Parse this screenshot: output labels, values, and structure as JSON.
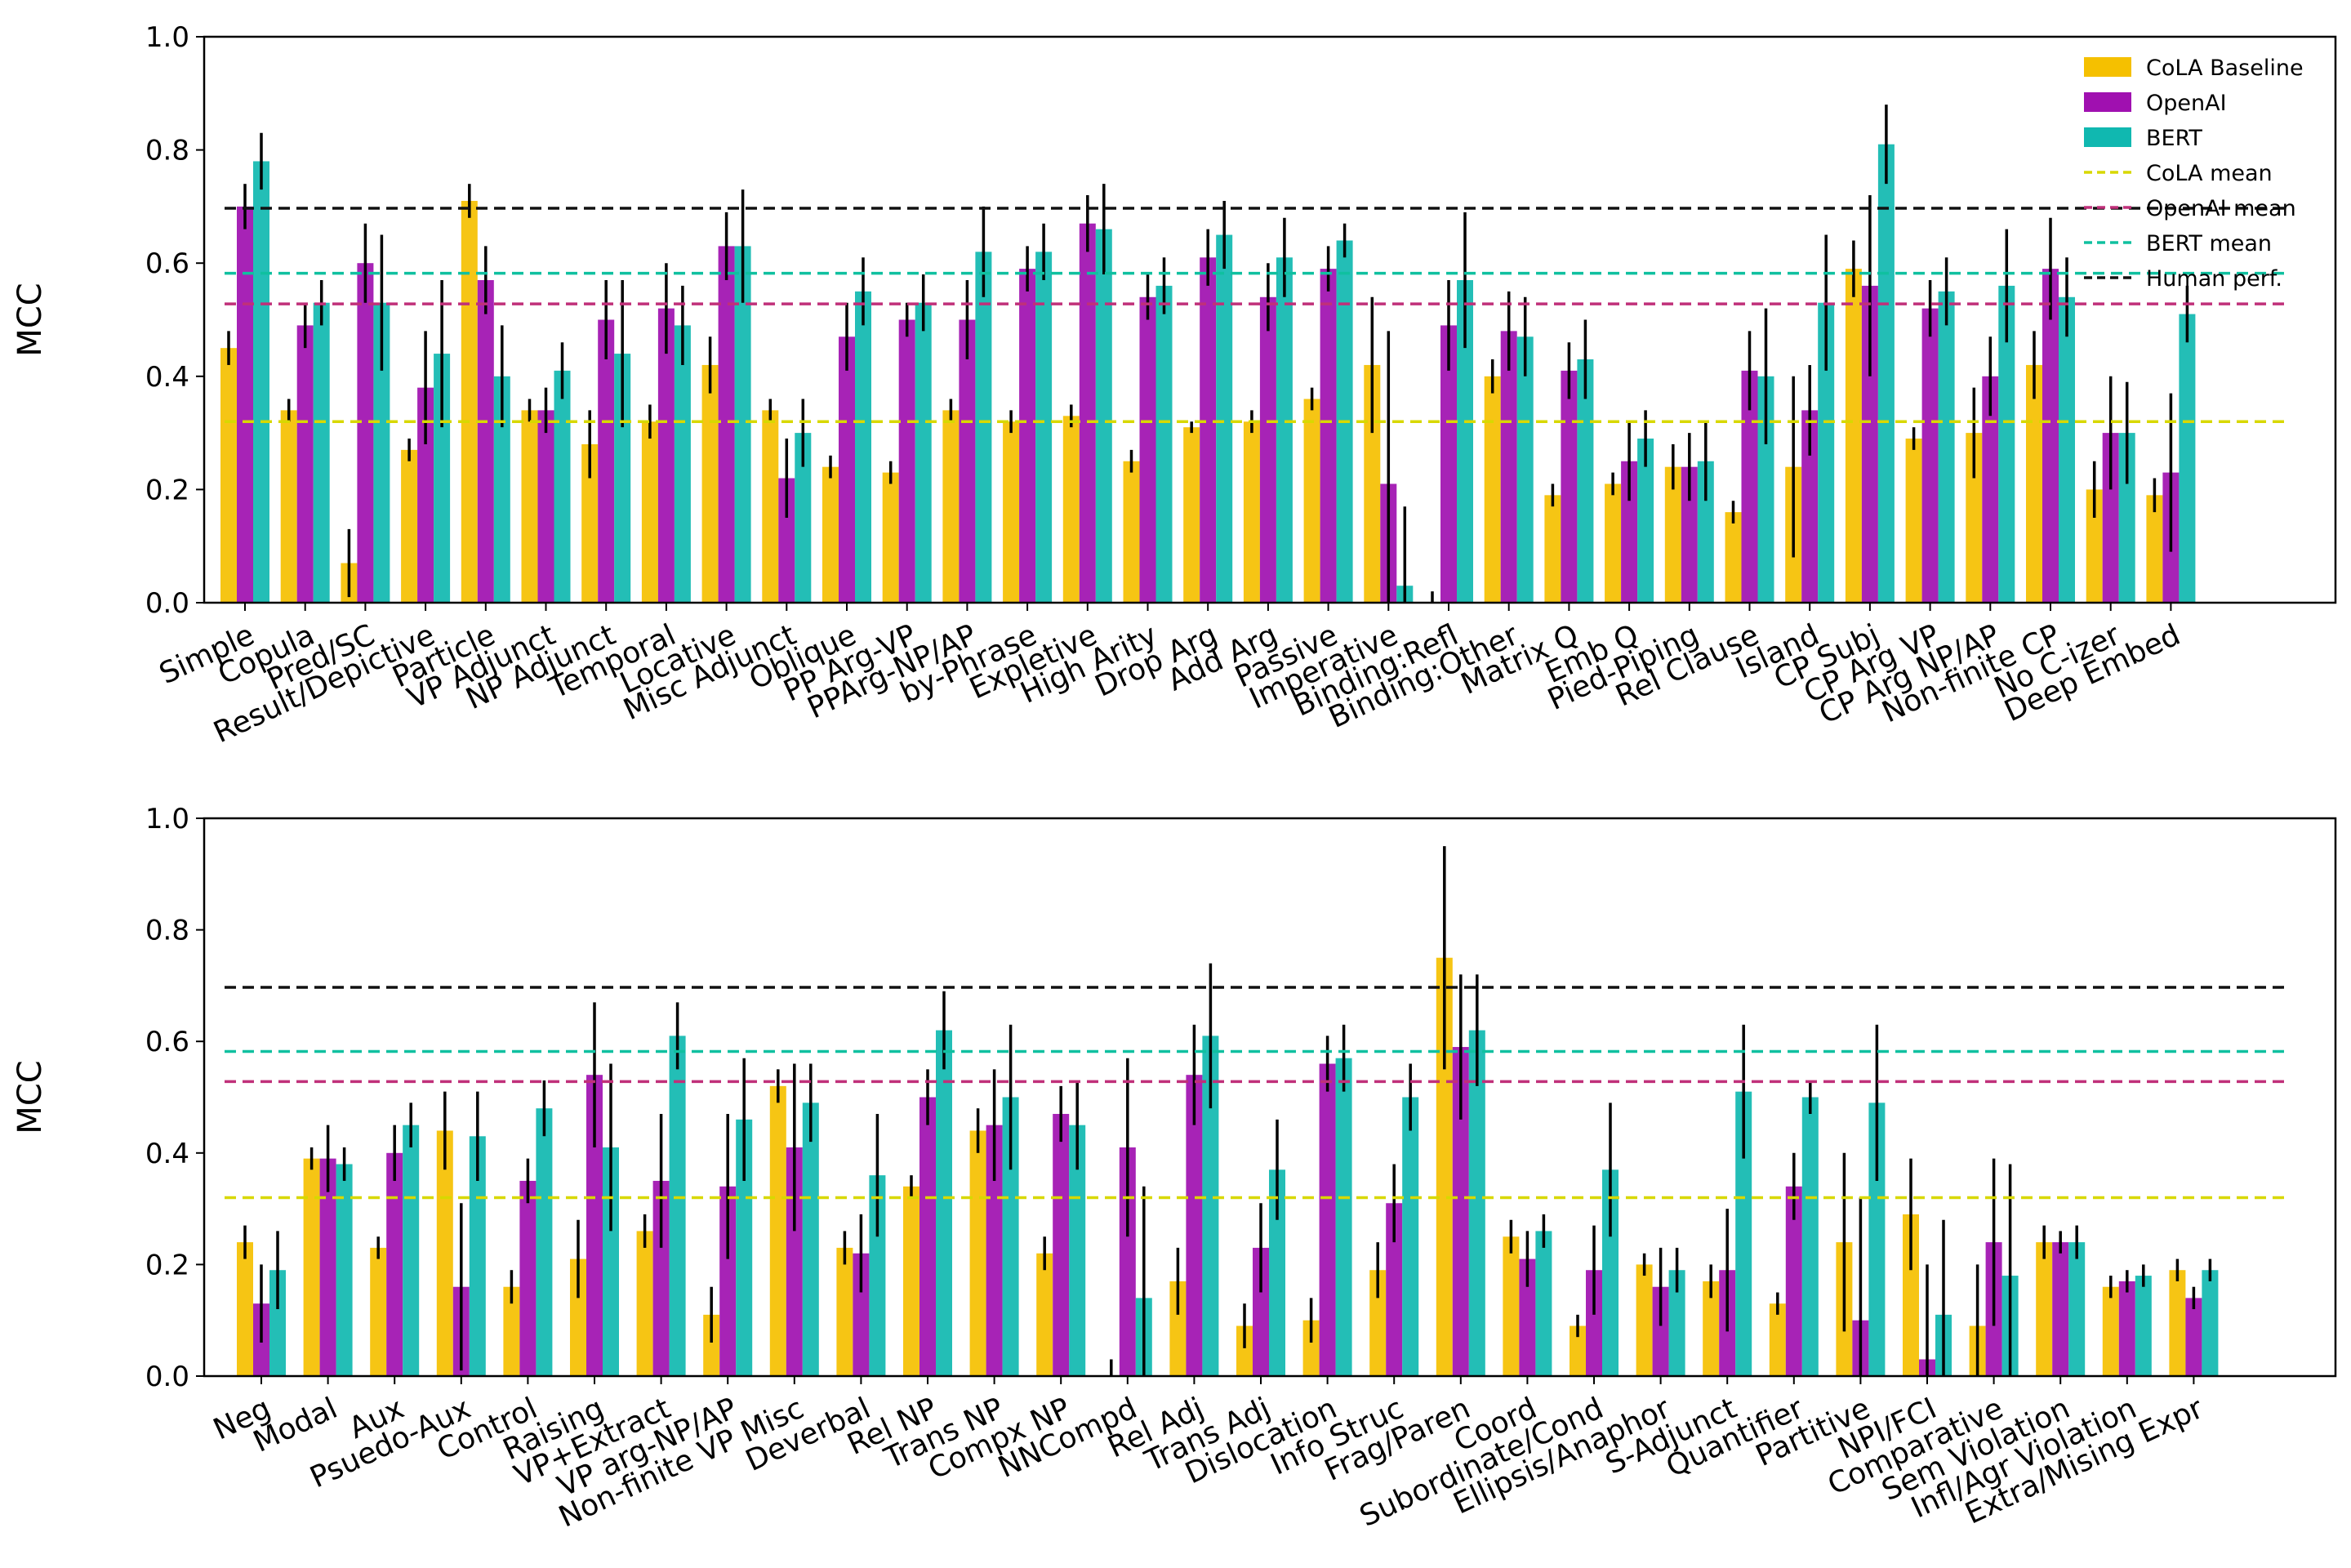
{
  "chart_data": [
    {
      "type": "bar",
      "ylabel": "MCC",
      "ylim": [
        0,
        1.0
      ],
      "yticks": [
        "0.0",
        "0.2",
        "0.4",
        "0.6",
        "0.8",
        "1.0"
      ],
      "grid": false,
      "legend": {
        "placement": "top-right",
        "entries": [
          "CoLA Baseline",
          "OpenAI",
          "BERT",
          "CoLA mean",
          "OpenAI mean",
          "BERT mean",
          "Human perf."
        ]
      },
      "colors": {
        "cola": "#f5c000",
        "openai": "#a010b0",
        "bert": "#10b8b0",
        "cola_mean": "#d8d800",
        "openai_mean": "#c0307a",
        "bert_mean": "#10c0a0",
        "human": "#111111"
      },
      "categories": [
        "Simple",
        "Copula",
        "Pred/SC",
        "Result/Depictive",
        "Particle",
        "VP Adjunct",
        "NP Adjunct",
        "Temporal",
        "Locative",
        "Misc Adjunct",
        "Oblique",
        "PP Arg-VP",
        "PPArg-NP/AP",
        "by-Phrase",
        "Expletive",
        "High Arity",
        "Drop Arg",
        "Add Arg",
        "Passive",
        "Imperative",
        "Binding:Refl",
        "Binding:Other",
        "Matrix Q",
        "Emb Q",
        "Pied-Piping",
        "Rel Clause",
        "Island",
        "CP Subj",
        "CP Arg VP",
        "CP Arg NP/AP",
        "Non-finite CP",
        "No C-izer",
        "Deep Embed"
      ],
      "series": [
        {
          "name": "CoLA Baseline",
          "key": "cola",
          "values": [
            0.45,
            0.34,
            0.07,
            0.27,
            0.71,
            0.34,
            0.28,
            0.32,
            0.42,
            0.34,
            0.24,
            0.23,
            0.34,
            0.32,
            0.33,
            0.25,
            0.31,
            0.32,
            0.36,
            0.42,
            0.0,
            0.4,
            0.19,
            0.21,
            0.24,
            0.16,
            0.24,
            0.59,
            0.29,
            0.3,
            0.42,
            0.2,
            0.19
          ],
          "err": [
            0.03,
            0.02,
            0.06,
            0.02,
            0.03,
            0.02,
            0.06,
            0.03,
            0.05,
            0.02,
            0.02,
            0.02,
            0.02,
            0.02,
            0.02,
            0.02,
            0.01,
            0.02,
            0.02,
            0.12,
            0.02,
            0.03,
            0.02,
            0.02,
            0.04,
            0.02,
            0.16,
            0.05,
            0.02,
            0.08,
            0.06,
            0.05,
            0.03
          ]
        },
        {
          "name": "OpenAI",
          "key": "openai",
          "values": [
            0.7,
            0.49,
            0.6,
            0.38,
            0.57,
            0.34,
            0.5,
            0.52,
            0.63,
            0.22,
            0.47,
            0.5,
            0.5,
            0.59,
            0.67,
            0.54,
            0.61,
            0.54,
            0.59,
            0.21,
            0.49,
            0.48,
            0.41,
            0.25,
            0.24,
            0.41,
            0.34,
            0.56,
            0.52,
            0.4,
            0.59,
            0.3,
            0.23
          ],
          "err": [
            0.04,
            0.04,
            0.07,
            0.1,
            0.06,
            0.04,
            0.07,
            0.08,
            0.06,
            0.07,
            0.06,
            0.03,
            0.07,
            0.04,
            0.05,
            0.04,
            0.05,
            0.06,
            0.04,
            0.27,
            0.08,
            0.07,
            0.05,
            0.07,
            0.06,
            0.07,
            0.08,
            0.16,
            0.05,
            0.07,
            0.09,
            0.1,
            0.14
          ]
        },
        {
          "name": "BERT",
          "key": "bert",
          "values": [
            0.78,
            0.53,
            0.53,
            0.44,
            0.4,
            0.41,
            0.44,
            0.49,
            0.63,
            0.3,
            0.55,
            0.53,
            0.62,
            0.62,
            0.66,
            0.56,
            0.65,
            0.61,
            0.64,
            0.03,
            0.57,
            0.47,
            0.43,
            0.29,
            0.25,
            0.4,
            0.53,
            0.81,
            0.55,
            0.56,
            0.54,
            0.3,
            0.51
          ],
          "err": [
            0.05,
            0.04,
            0.12,
            0.13,
            0.09,
            0.05,
            0.13,
            0.07,
            0.1,
            0.06,
            0.06,
            0.05,
            0.08,
            0.05,
            0.08,
            0.05,
            0.06,
            0.07,
            0.03,
            0.14,
            0.12,
            0.07,
            0.07,
            0.05,
            0.07,
            0.12,
            0.12,
            0.07,
            0.06,
            0.1,
            0.07,
            0.09,
            0.05
          ]
        }
      ],
      "reference_lines": [
        {
          "name": "CoLA mean",
          "key": "cola_mean",
          "value": 0.32
        },
        {
          "name": "OpenAI mean",
          "key": "openai_mean",
          "value": 0.528
        },
        {
          "name": "BERT mean",
          "key": "bert_mean",
          "value": 0.582
        },
        {
          "name": "Human perf.",
          "key": "human",
          "value": 0.697
        }
      ]
    },
    {
      "type": "bar",
      "ylabel": "MCC",
      "ylim": [
        0,
        1.0
      ],
      "yticks": [
        "0.0",
        "0.2",
        "0.4",
        "0.6",
        "0.8",
        "1.0"
      ],
      "grid": false,
      "colors": {
        "cola": "#f5c000",
        "openai": "#a010b0",
        "bert": "#10b8b0",
        "cola_mean": "#d8d800",
        "openai_mean": "#c0307a",
        "bert_mean": "#10c0a0",
        "human": "#111111"
      },
      "categories": [
        "Neg",
        "Modal",
        "Aux",
        "Psuedo-Aux",
        "Control",
        "Raising",
        "VP+Extract",
        "VP arg-NP/AP",
        "Non-finite VP Misc",
        "Deverbal",
        "Rel NP",
        "Trans NP",
        "Compx NP",
        "NNCompd",
        "Rel Adj",
        "Trans Adj",
        "Dislocation",
        "Info Struc",
        "Frag/Paren",
        "Coord",
        "Subordinate/Cond",
        "Ellipsis/Anaphor",
        "S-Adjunct",
        "Quantifier",
        "Partitive",
        "NPI/FCI",
        "Comparative",
        "Sem Violation",
        "Infl/Agr Violation",
        "Extra/Mising Expr"
      ],
      "series": [
        {
          "name": "CoLA Baseline",
          "key": "cola",
          "values": [
            0.24,
            0.39,
            0.23,
            0.44,
            0.16,
            0.21,
            0.26,
            0.11,
            0.52,
            0.23,
            0.34,
            0.44,
            0.22,
            0.0,
            0.17,
            0.09,
            0.1,
            0.19,
            0.75,
            0.25,
            0.09,
            0.2,
            0.17,
            0.13,
            0.24,
            0.29,
            0.09,
            0.24,
            0.16,
            0.19
          ],
          "err": [
            0.03,
            0.02,
            0.02,
            0.07,
            0.03,
            0.07,
            0.03,
            0.05,
            0.03,
            0.03,
            0.02,
            0.04,
            0.03,
            0.03,
            0.06,
            0.04,
            0.04,
            0.05,
            0.2,
            0.03,
            0.02,
            0.02,
            0.03,
            0.02,
            0.16,
            0.1,
            0.11,
            0.03,
            0.02,
            0.02
          ]
        },
        {
          "name": "OpenAI",
          "key": "openai",
          "values": [
            0.13,
            0.39,
            0.4,
            0.16,
            0.35,
            0.54,
            0.35,
            0.34,
            0.41,
            0.22,
            0.5,
            0.45,
            0.47,
            0.41,
            0.54,
            0.23,
            0.56,
            0.31,
            0.59,
            0.21,
            0.19,
            0.16,
            0.19,
            0.34,
            0.1,
            0.03,
            0.24,
            0.24,
            0.17,
            0.14
          ],
          "err": [
            0.07,
            0.06,
            0.05,
            0.15,
            0.04,
            0.13,
            0.12,
            0.13,
            0.15,
            0.07,
            0.05,
            0.1,
            0.05,
            0.16,
            0.09,
            0.08,
            0.05,
            0.07,
            0.13,
            0.05,
            0.08,
            0.07,
            0.11,
            0.06,
            0.22,
            0.17,
            0.15,
            0.02,
            0.02,
            0.02
          ]
        },
        {
          "name": "BERT",
          "key": "bert",
          "values": [
            0.19,
            0.38,
            0.45,
            0.43,
            0.48,
            0.41,
            0.61,
            0.46,
            0.49,
            0.36,
            0.62,
            0.5,
            0.45,
            0.14,
            0.61,
            0.37,
            0.57,
            0.5,
            0.62,
            0.26,
            0.37,
            0.19,
            0.51,
            0.5,
            0.49,
            0.11,
            0.18,
            0.24,
            0.18,
            0.19
          ],
          "err": [
            0.07,
            0.03,
            0.04,
            0.08,
            0.05,
            0.15,
            0.06,
            0.11,
            0.07,
            0.11,
            0.07,
            0.13,
            0.08,
            0.2,
            0.13,
            0.09,
            0.06,
            0.06,
            0.1,
            0.03,
            0.12,
            0.04,
            0.12,
            0.03,
            0.14,
            0.17,
            0.2,
            0.03,
            0.02,
            0.02
          ]
        }
      ],
      "reference_lines": [
        {
          "name": "CoLA mean",
          "key": "cola_mean",
          "value": 0.32
        },
        {
          "name": "OpenAI mean",
          "key": "openai_mean",
          "value": 0.528
        },
        {
          "name": "BERT mean",
          "key": "bert_mean",
          "value": 0.582
        },
        {
          "name": "Human perf.",
          "key": "human",
          "value": 0.697
        }
      ]
    }
  ]
}
